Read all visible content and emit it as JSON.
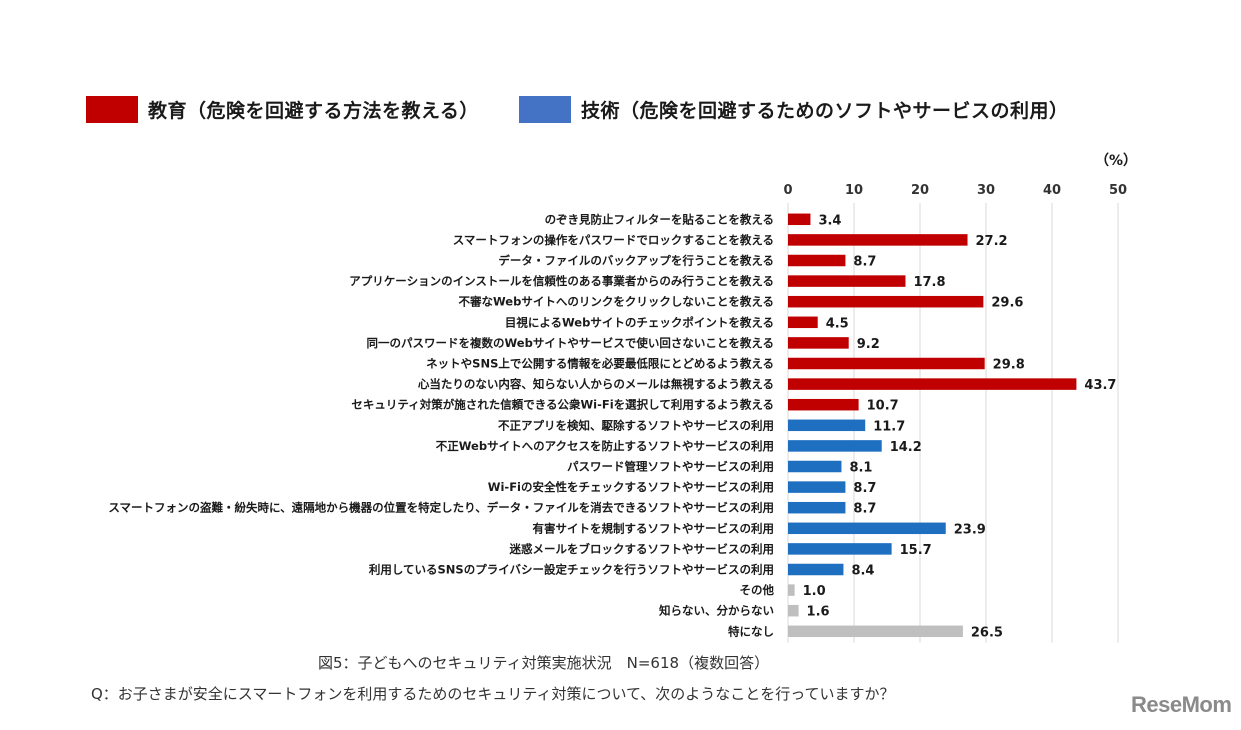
{
  "legend": [
    {
      "label": "教育（危険を回避する方法を教える）",
      "color": "#C00000"
    },
    {
      "label": "技術（危険を回避するためのソフトやサービスの利用）",
      "color": "#4472C4"
    }
  ],
  "unit": "（%）",
  "caption_main": "図5：子どもへのセキュリティ対策実施状況　N=618（複数回答）",
  "caption_question": "Q：お子さまが安全にスマートフォンを利用するためのセキュリティ対策について、次のようなことを行っていますか？",
  "logo": "ReseMom",
  "chart_data": {
    "type": "bar",
    "orientation": "horizontal",
    "xlim": [
      0,
      50
    ],
    "xticks": [
      0,
      10,
      20,
      30,
      40,
      50
    ],
    "grid": true,
    "legend_position": "top",
    "group_colors": {
      "education": "#C00000",
      "technology": "#1F6FC0",
      "other": "#BFBFBF"
    },
    "items": [
      {
        "label": "のぞき見防止フィルターを貼ることを教える",
        "value": 3.4,
        "value_label": "3.4",
        "group": "education"
      },
      {
        "label": "スマートフォンの操作をパスワードでロックすることを教える",
        "value": 27.2,
        "value_label": "27.2",
        "group": "education"
      },
      {
        "label": "データ・ファイルのバックアップを行うことを教える",
        "value": 8.7,
        "value_label": "8.7",
        "group": "education"
      },
      {
        "label": "アプリケーションのインストールを信頼性のある事業者からのみ行うことを教える",
        "value": 17.8,
        "value_label": "17.8",
        "group": "education"
      },
      {
        "label": "不審なWebサイトへのリンクをクリックしないことを教える",
        "value": 29.6,
        "value_label": "29.6",
        "group": "education"
      },
      {
        "label": "目視によるWebサイトのチェックポイントを教える",
        "value": 4.5,
        "value_label": "4.5",
        "group": "education"
      },
      {
        "label": "同一のパスワードを複数のWebサイトやサービスで使い回さないことを教える",
        "value": 9.2,
        "value_label": "9.2",
        "group": "education"
      },
      {
        "label": "ネットやSNS上で公開する情報を必要最低限にとどめるよう教える",
        "value": 29.8,
        "value_label": "29.8",
        "group": "education"
      },
      {
        "label": "心当たりのない内容、知らない人からのメールは無視するよう教える",
        "value": 43.7,
        "value_label": "43.7",
        "group": "education"
      },
      {
        "label": "セキュリティ対策が施された信頼できる公衆Wi-Fiを選択して利用するよう教える",
        "value": 10.7,
        "value_label": "10.7",
        "group": "education"
      },
      {
        "label": "不正アプリを検知、駆除するソフトやサービスの利用",
        "value": 11.7,
        "value_label": "11.7",
        "group": "technology"
      },
      {
        "label": "不正Webサイトへのアクセスを防止するソフトやサービスの利用",
        "value": 14.2,
        "value_label": "14.2",
        "group": "technology"
      },
      {
        "label": "パスワード管理ソフトやサービスの利用",
        "value": 8.1,
        "value_label": "8.1",
        "group": "technology"
      },
      {
        "label": "Wi-Fiの安全性をチェックするソフトやサービスの利用",
        "value": 8.7,
        "value_label": "8.7",
        "group": "technology"
      },
      {
        "label": "スマートフォンの盗難・紛失時に、遠隔地から機器の位置を特定したり、データ・ファイルを消去できるソフトやサービスの利用",
        "value": 8.7,
        "value_label": "8.7",
        "group": "technology"
      },
      {
        "label": "有害サイトを規制するソフトやサービスの利用",
        "value": 23.9,
        "value_label": "23.9",
        "group": "technology"
      },
      {
        "label": "迷惑メールをブロックするソフトやサービスの利用",
        "value": 15.7,
        "value_label": "15.7",
        "group": "technology"
      },
      {
        "label": "利用しているSNSのプライバシー設定チェックを行うソフトやサービスの利用",
        "value": 8.4,
        "value_label": "8.4",
        "group": "technology"
      },
      {
        "label": "その他",
        "value": 1.0,
        "value_label": "1.0",
        "group": "other"
      },
      {
        "label": "知らない、分からない",
        "value": 1.6,
        "value_label": "1.6",
        "group": "other"
      },
      {
        "label": "特になし",
        "value": 26.5,
        "value_label": "26.5",
        "group": "other"
      }
    ]
  }
}
